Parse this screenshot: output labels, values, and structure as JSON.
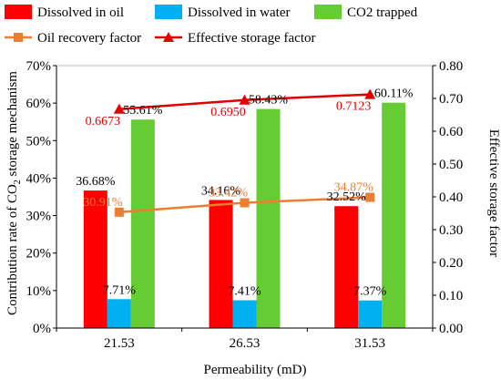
{
  "chart_data": {
    "type": "bar",
    "xlabel": "Permeability (mD)",
    "ylabel_left_parts": [
      "Contribution rate of CO",
      "2",
      " storage mechanism"
    ],
    "ylabel_right": "Effective storage factor",
    "categories": [
      "21.53",
      "26.53",
      "31.53"
    ],
    "ylim_left": [
      0,
      70
    ],
    "yticks_left": [
      "0%",
      "10%",
      "20%",
      "30%",
      "40%",
      "50%",
      "60%",
      "70%"
    ],
    "ylim_right": [
      0,
      0.8
    ],
    "yticks_right": [
      "0.00",
      "0.10",
      "0.20",
      "0.30",
      "0.40",
      "0.50",
      "0.60",
      "0.70",
      "0.80"
    ],
    "legend_placement": "top",
    "bar_series": [
      {
        "name": "Dissolved in oil",
        "color": "#ff0000",
        "values": [
          36.68,
          34.16,
          32.52
        ],
        "labels": [
          "36.68%",
          "34.16%",
          "32.52%"
        ],
        "label_color": "#000000"
      },
      {
        "name": "Dissolved in water",
        "color": "#00b0f0",
        "values": [
          7.71,
          7.41,
          7.37
        ],
        "labels": [
          "7.71%",
          "7.41%",
          "7.37%"
        ],
        "label_color": "#000000"
      },
      {
        "name": "CO2 trapped",
        "color": "#66cc33",
        "values": [
          55.61,
          58.43,
          60.11
        ],
        "labels": [
          "55.61%",
          "58.43%",
          "60.11%"
        ],
        "label_color": "#000000"
      }
    ],
    "line_series": [
      {
        "name": "Oil recovery factor",
        "color": "#ed7d31",
        "marker": "square",
        "axis": "left",
        "values": [
          30.91,
          33.42,
          34.87
        ],
        "labels": [
          "30.91%",
          "33.42%",
          "34.87%"
        ],
        "label_color": "#ed7d31"
      },
      {
        "name": "Effective storage factor",
        "color": "#e00000",
        "marker": "triangle",
        "axis": "right",
        "values": [
          0.6673,
          0.695,
          0.7123
        ],
        "labels": [
          "0.6673",
          "0.6950",
          "0.7123"
        ],
        "label_color": "#e00000"
      }
    ]
  }
}
